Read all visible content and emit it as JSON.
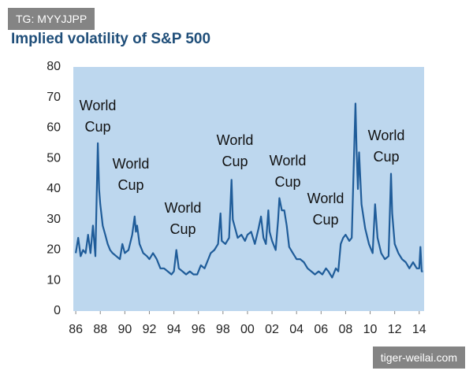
{
  "chart_data": {
    "type": "line",
    "title": "Implied volatility of S&P 500",
    "x": [
      1986.0,
      1986.2,
      1986.4,
      1986.6,
      1986.8,
      1987.0,
      1987.2,
      1987.4,
      1987.6,
      1987.8,
      1987.9,
      1988.0,
      1988.2,
      1988.4,
      1988.6,
      1988.8,
      1989.0,
      1989.3,
      1989.6,
      1989.8,
      1990.0,
      1990.3,
      1990.6,
      1990.8,
      1990.9,
      1991.0,
      1991.2,
      1991.5,
      1991.8,
      1992.0,
      1992.3,
      1992.6,
      1992.9,
      1993.2,
      1993.5,
      1993.8,
      1994.0,
      1994.2,
      1994.4,
      1994.7,
      1995.0,
      1995.3,
      1995.6,
      1995.9,
      1996.2,
      1996.5,
      1996.8,
      1997.0,
      1997.3,
      1997.6,
      1997.8,
      1997.9,
      1998.2,
      1998.5,
      1998.7,
      1998.8,
      1999.0,
      1999.2,
      1999.5,
      1999.8,
      2000.0,
      2000.3,
      2000.6,
      2000.9,
      2001.1,
      2001.3,
      2001.5,
      2001.7,
      2001.8,
      2002.0,
      2002.3,
      2002.5,
      2002.6,
      2002.8,
      2003.0,
      2003.2,
      2003.4,
      2003.7,
      2004.0,
      2004.3,
      2004.6,
      2004.9,
      2005.2,
      2005.5,
      2005.8,
      2006.1,
      2006.4,
      2006.6,
      2006.9,
      2007.2,
      2007.4,
      2007.6,
      2007.8,
      2008.0,
      2008.3,
      2008.5,
      2008.8,
      2008.9,
      2009.0,
      2009.1,
      2009.3,
      2009.6,
      2009.9,
      2010.2,
      2010.4,
      2010.6,
      2010.9,
      2011.2,
      2011.5,
      2011.7,
      2011.8,
      2012.0,
      2012.3,
      2012.6,
      2012.9,
      2013.2,
      2013.5,
      2013.8,
      2014.0,
      2014.1,
      2014.2,
      2014.3
    ],
    "series": [
      {
        "color": "#1f5c99",
        "values": [
          19,
          24,
          18,
          20,
          19,
          25,
          19,
          28,
          18,
          55,
          40,
          35,
          28,
          25,
          22,
          20,
          19,
          18,
          17,
          22,
          19,
          20,
          25,
          31,
          26,
          28,
          22,
          19,
          18,
          17,
          19,
          17,
          14,
          14,
          13,
          12,
          13,
          20,
          14,
          13,
          12,
          13,
          12,
          12,
          15,
          14,
          17,
          19,
          20,
          22,
          32,
          23,
          22,
          24,
          43,
          30,
          27,
          24,
          25,
          23,
          25,
          26,
          22,
          27,
          31,
          24,
          22,
          33,
          26,
          23,
          20,
          30,
          37,
          33,
          33,
          28,
          21,
          19,
          17,
          17,
          16,
          14,
          13,
          12,
          13,
          12,
          14,
          13,
          11,
          14,
          13,
          22,
          24,
          25,
          23,
          24,
          68,
          52,
          40,
          52,
          35,
          27,
          22,
          19,
          35,
          24,
          19,
          17,
          18,
          45,
          32,
          22,
          19,
          17,
          16,
          14,
          16,
          14,
          14,
          21,
          13,
          13
        ]
      }
    ],
    "xlim": [
      1985.8,
      2014.4
    ],
    "xticks": [
      {
        "value": 1986,
        "label": "86"
      },
      {
        "value": 1988,
        "label": "88"
      },
      {
        "value": 1990,
        "label": "90"
      },
      {
        "value": 1992,
        "label": "92"
      },
      {
        "value": 1994,
        "label": "94"
      },
      {
        "value": 1996,
        "label": "96"
      },
      {
        "value": 1998,
        "label": "98"
      },
      {
        "value": 2000,
        "label": "00"
      },
      {
        "value": 2002,
        "label": "02"
      },
      {
        "value": 2004,
        "label": "04"
      },
      {
        "value": 2006,
        "label": "06"
      },
      {
        "value": 2008,
        "label": "08"
      },
      {
        "value": 2010,
        "label": "10"
      },
      {
        "value": 2012,
        "label": "12"
      },
      {
        "value": 2014,
        "label": "14"
      }
    ],
    "ylim": [
      0,
      80
    ],
    "yticks": [
      0,
      10,
      20,
      30,
      40,
      50,
      60,
      70,
      80
    ],
    "plot_background": "#bdd7ee",
    "grid": false,
    "annotations": [
      "World Cup",
      "World Cup",
      "World Cup",
      "World Cup",
      "World Cup",
      "World Cup",
      "World Cup"
    ]
  },
  "watermarks": [
    "TG: MYYJJPP",
    "tiger-weilai.com"
  ]
}
